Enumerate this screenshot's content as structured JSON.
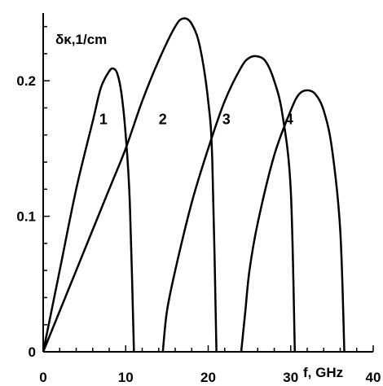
{
  "chart_data": {
    "type": "line",
    "xlabel": "f, GHz",
    "ylabel": "δκ,1/cm",
    "xlim": [
      0,
      40
    ],
    "ylim": [
      0,
      0.25
    ],
    "x_ticks": [
      "0",
      "10",
      "20",
      "30",
      "40"
    ],
    "y_ticks": [
      "0",
      "0.1",
      "0.2"
    ],
    "series": [
      {
        "name": "1",
        "x": [
          0,
          2,
          4,
          6,
          7,
          8,
          8.5,
          9,
          9.5,
          10,
          10.5,
          11
        ],
        "y": [
          0,
          0.06,
          0.12,
          0.17,
          0.195,
          0.207,
          0.209,
          0.205,
          0.19,
          0.16,
          0.11,
          0
        ]
      },
      {
        "name": "2",
        "x": [
          0,
          4,
          8,
          10,
          12,
          14,
          16,
          17,
          18,
          19,
          20,
          20.5,
          21
        ],
        "y": [
          0,
          0.06,
          0.12,
          0.15,
          0.185,
          0.215,
          0.24,
          0.246,
          0.242,
          0.225,
          0.185,
          0.14,
          0
        ]
      },
      {
        "name": "3",
        "x": [
          14.5,
          15,
          16,
          18,
          20,
          22,
          24,
          25,
          26,
          27,
          28,
          29,
          30,
          30.5
        ],
        "y": [
          0,
          0.03,
          0.06,
          0.11,
          0.15,
          0.185,
          0.21,
          0.217,
          0.218,
          0.214,
          0.2,
          0.175,
          0.12,
          0
        ]
      },
      {
        "name": "4",
        "x": [
          24,
          24.5,
          25,
          26,
          28,
          30,
          31,
          32,
          33,
          34,
          35,
          36,
          36.5
        ],
        "y": [
          0,
          0.03,
          0.06,
          0.095,
          0.145,
          0.178,
          0.19,
          0.193,
          0.19,
          0.178,
          0.15,
          0.09,
          0
        ]
      }
    ],
    "curve_labels": [
      {
        "text": "1",
        "x": 7.3,
        "y": 0.168
      },
      {
        "text": "2",
        "x": 14.5,
        "y": 0.168
      },
      {
        "text": "3",
        "x": 22.2,
        "y": 0.168
      },
      {
        "text": "4",
        "x": 29.8,
        "y": 0.168
      }
    ],
    "colors": {
      "line": "#000000",
      "axis": "#000000"
    }
  }
}
